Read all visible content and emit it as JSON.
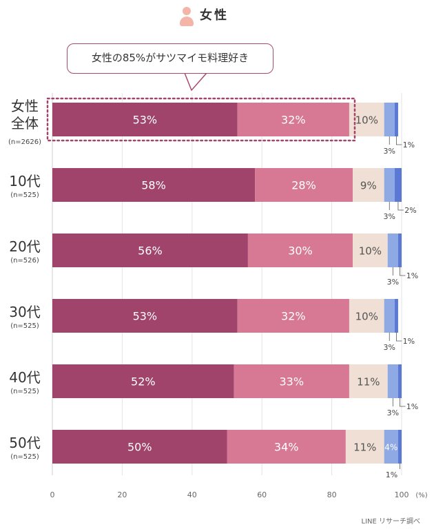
{
  "header": {
    "title": "女性",
    "icon": "person-icon"
  },
  "callout": "女性の85%がサツマイモ料理好き",
  "source": "LINE リサーチ調べ",
  "colors": [
    "#a0446c",
    "#d77994",
    "#efdfd4",
    "#8fa9e4",
    "#5a78d4"
  ],
  "chart_data": {
    "type": "bar",
    "orientation": "horizontal",
    "stacked": true,
    "xlim": [
      0,
      100
    ],
    "x_ticks": [
      "0",
      "20",
      "40",
      "60",
      "80",
      "100"
    ],
    "x_unit": "(%)",
    "grid": true,
    "unit_suffix": "%",
    "categories": [
      {
        "label": "女性\n全体",
        "n": "(n=2626)"
      },
      {
        "label": "10代",
        "n": "(n=525)"
      },
      {
        "label": "20代",
        "n": "(n=526)"
      },
      {
        "label": "30代",
        "n": "(n=525)"
      },
      {
        "label": "40代",
        "n": "(n=525)"
      },
      {
        "label": "50代",
        "n": "(n=525)"
      }
    ],
    "series": [
      {
        "values": [
          53,
          58,
          56,
          53,
          52,
          50
        ]
      },
      {
        "values": [
          32,
          28,
          30,
          32,
          33,
          34
        ]
      },
      {
        "values": [
          10,
          9,
          10,
          10,
          11,
          11
        ]
      },
      {
        "values": [
          3,
          3,
          3,
          3,
          3,
          4
        ]
      },
      {
        "values": [
          1,
          2,
          1,
          1,
          1,
          1
        ]
      }
    ],
    "highlight": {
      "category_index": 0,
      "series_indices": [
        0,
        1
      ],
      "total": 85
    }
  }
}
